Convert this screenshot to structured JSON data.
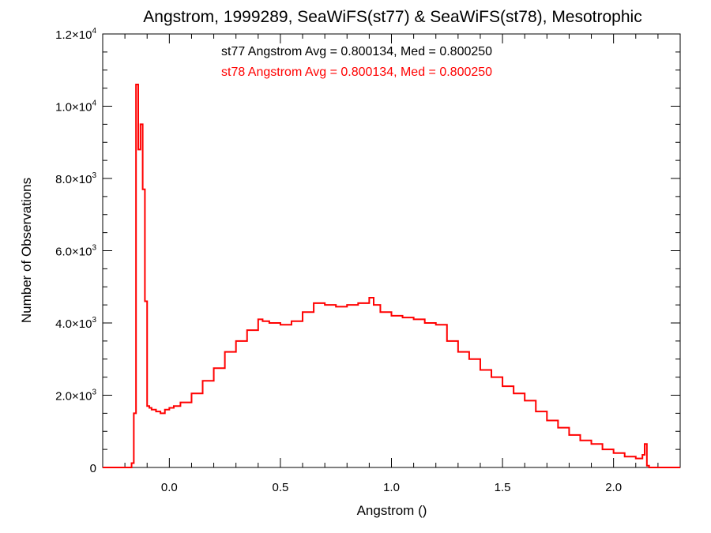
{
  "chart_data": {
    "type": "line",
    "title": "Angstrom, 1999289, SeaWiFS(st77) & SeaWiFS(st78), Mesotrophic",
    "xlabel": "Angstrom ()",
    "ylabel": "Number of Observations",
    "xlim": [
      -0.3,
      2.3
    ],
    "ylim": [
      0,
      12000
    ],
    "x_ticks": [
      {
        "value": 0.0,
        "label": "0.0"
      },
      {
        "value": 0.5,
        "label": "0.5"
      },
      {
        "value": 1.0,
        "label": "1.0"
      },
      {
        "value": 1.5,
        "label": "1.5"
      },
      {
        "value": 2.0,
        "label": "2.0"
      }
    ],
    "y_ticks": [
      {
        "value": 0,
        "mantissa": "0",
        "exp": ""
      },
      {
        "value": 2000,
        "mantissa": "2.0×10",
        "exp": "3"
      },
      {
        "value": 4000,
        "mantissa": "4.0×10",
        "exp": "3"
      },
      {
        "value": 6000,
        "mantissa": "6.0×10",
        "exp": "3"
      },
      {
        "value": 8000,
        "mantissa": "8.0×10",
        "exp": "3"
      },
      {
        "value": 10000,
        "mantissa": "1.0×10",
        "exp": "4"
      },
      {
        "value": 12000,
        "mantissa": "1.2×10",
        "exp": "4"
      }
    ],
    "annotations": [
      {
        "text": "st77 Angstrom Avg = 0.800134, Med = 0.800250",
        "color": "#000000"
      },
      {
        "text": "st78 Angstrom Avg = 0.800134, Med = 0.800250",
        "color": "#ff0000"
      }
    ],
    "series": [
      {
        "color": "#ff0000",
        "x": [
          -0.3,
          -0.17,
          -0.16,
          -0.15,
          -0.14,
          -0.13,
          -0.12,
          -0.11,
          -0.1,
          -0.09,
          -0.08,
          -0.06,
          -0.04,
          -0.02,
          0.0,
          0.02,
          0.05,
          0.1,
          0.15,
          0.2,
          0.25,
          0.3,
          0.35,
          0.4,
          0.42,
          0.45,
          0.5,
          0.55,
          0.6,
          0.65,
          0.7,
          0.75,
          0.8,
          0.85,
          0.9,
          0.92,
          0.95,
          1.0,
          1.05,
          1.1,
          1.15,
          1.2,
          1.25,
          1.3,
          1.35,
          1.4,
          1.45,
          1.5,
          1.55,
          1.6,
          1.65,
          1.7,
          1.75,
          1.8,
          1.85,
          1.9,
          1.95,
          2.0,
          2.05,
          2.1,
          2.13,
          2.14,
          2.15,
          2.16,
          2.2,
          2.3
        ],
        "values": [
          0,
          120,
          1500,
          10600,
          8800,
          9500,
          7700,
          4600,
          1700,
          1650,
          1600,
          1550,
          1500,
          1600,
          1650,
          1700,
          1800,
          2050,
          2400,
          2750,
          3200,
          3500,
          3800,
          4100,
          4050,
          4000,
          3950,
          4050,
          4300,
          4550,
          4500,
          4450,
          4500,
          4550,
          4700,
          4500,
          4300,
          4200,
          4150,
          4100,
          4000,
          3950,
          3500,
          3200,
          3000,
          2700,
          2500,
          2250,
          2050,
          1850,
          1550,
          1300,
          1100,
          900,
          750,
          650,
          500,
          400,
          300,
          250,
          350,
          650,
          50,
          0,
          0,
          0
        ]
      }
    ]
  }
}
